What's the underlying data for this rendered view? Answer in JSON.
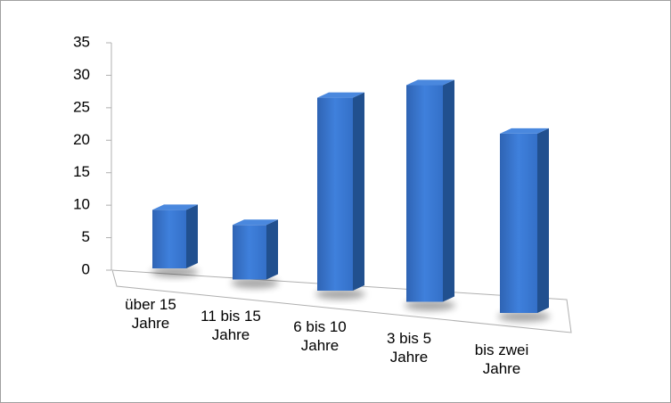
{
  "chart_data": {
    "type": "bar3d",
    "categories": [
      "über 15 Jahre",
      "11 bis 15 Jahre",
      "6 bis 10 Jahre",
      "3 bis 5 Jahre",
      "bis zwei Jahre"
    ],
    "values": [
      9,
      8,
      27,
      29,
      23
    ],
    "color": "#3a78d2",
    "ylim": [
      0,
      35
    ],
    "yticks": [
      0,
      5,
      10,
      15,
      20,
      25,
      30,
      35
    ]
  }
}
